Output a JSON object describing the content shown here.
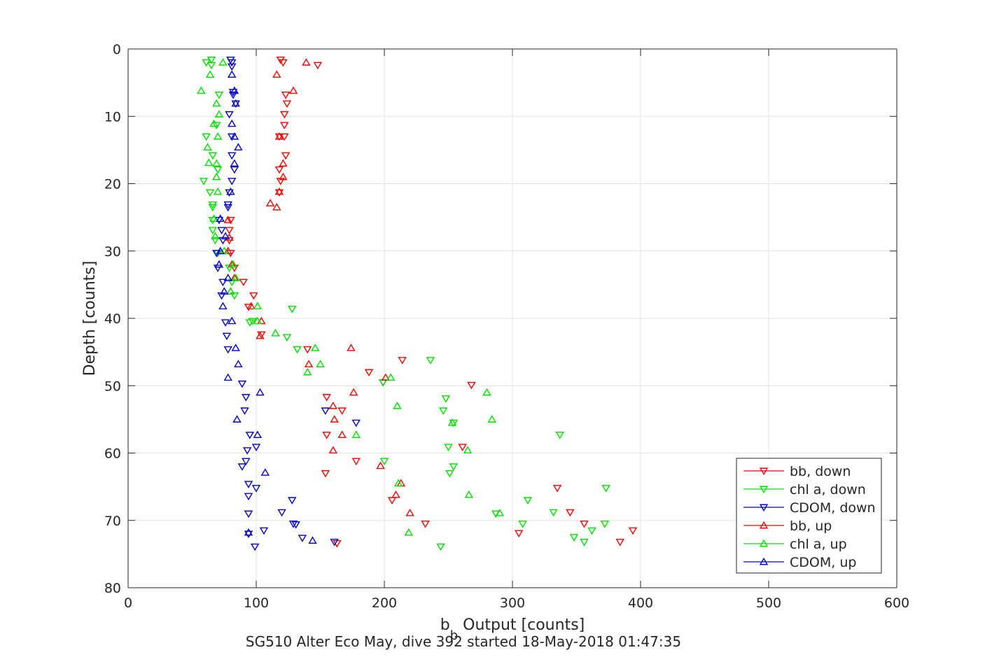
{
  "chart_data": {
    "type": "scatter",
    "title": "SG510 Alter Eco May, dive 392 started 18-May-2018 01:47:35",
    "xlabel_main": "b",
    "xlabel_sub": "b",
    "xlabel_rest": " Output [counts]",
    "ylabel": "Depth [counts]",
    "xlim": [
      0,
      600
    ],
    "ylim": [
      0,
      80
    ],
    "y_reversed": true,
    "xticks": [
      0,
      100,
      200,
      300,
      400,
      500,
      600
    ],
    "yticks": [
      0,
      10,
      20,
      30,
      40,
      50,
      60,
      70,
      80
    ],
    "grid": true,
    "legend_position": "bottom-right",
    "series": [
      {
        "name": "bb, down",
        "color": "#ff0000",
        "marker": "triangle-down",
        "points": [
          [
            119,
            1.6
          ],
          [
            121,
            2.0
          ],
          [
            148,
            2.4
          ],
          [
            123,
            6.8
          ],
          [
            124,
            8.1
          ],
          [
            122,
            9.7
          ],
          [
            122,
            11.3
          ],
          [
            122,
            13.0
          ],
          [
            118,
            13.0
          ],
          [
            123,
            15.8
          ],
          [
            118,
            17.9
          ],
          [
            119,
            19.6
          ],
          [
            118,
            21.3
          ],
          [
            80,
            25.4
          ],
          [
            79,
            26.9
          ],
          [
            79,
            28.4
          ],
          [
            80,
            30.3
          ],
          [
            83,
            32.5
          ],
          [
            90,
            34.6
          ],
          [
            98,
            36.6
          ],
          [
            94,
            38.3
          ],
          [
            104,
            42.4
          ],
          [
            140,
            44.6
          ],
          [
            214,
            46.2
          ],
          [
            188,
            48.0
          ],
          [
            199,
            49.5
          ],
          [
            268,
            49.9
          ],
          [
            155,
            51.7
          ],
          [
            167,
            53.7
          ],
          [
            155,
            57.3
          ],
          [
            261,
            59.1
          ],
          [
            178,
            61.2
          ],
          [
            154,
            63.0
          ],
          [
            335,
            65.2
          ],
          [
            206,
            67.0
          ],
          [
            345,
            68.8
          ],
          [
            232,
            70.5
          ],
          [
            356,
            70.5
          ],
          [
            305,
            71.9
          ],
          [
            394,
            71.5
          ],
          [
            384,
            73.2
          ],
          [
            163,
            73.4
          ]
        ]
      },
      {
        "name": "chl a, down",
        "color": "#00e000",
        "marker": "triangle-down",
        "points": [
          [
            65,
            1.6
          ],
          [
            61,
            2.0
          ],
          [
            65,
            2.4
          ],
          [
            71,
            6.8
          ],
          [
            69,
            11.3
          ],
          [
            61,
            13.0
          ],
          [
            66,
            15.8
          ],
          [
            70,
            17.9
          ],
          [
            59,
            19.6
          ],
          [
            64,
            21.3
          ],
          [
            66,
            23.1
          ],
          [
            66,
            23.5
          ],
          [
            66,
            25.4
          ],
          [
            66,
            26.9
          ],
          [
            68,
            28.4
          ],
          [
            70,
            30.3
          ],
          [
            79,
            32.5
          ],
          [
            81,
            34.6
          ],
          [
            83,
            36.6
          ],
          [
            128,
            38.6
          ],
          [
            95,
            40.6
          ],
          [
            97,
            40.4
          ],
          [
            124,
            42.8
          ],
          [
            132,
            44.6
          ],
          [
            236,
            46.2
          ],
          [
            199,
            49.5
          ],
          [
            248,
            51.9
          ],
          [
            246,
            53.7
          ],
          [
            254,
            55.5
          ],
          [
            337,
            57.3
          ],
          [
            250,
            59.1
          ],
          [
            200,
            61.2
          ],
          [
            251,
            63.0
          ],
          [
            373,
            65.2
          ],
          [
            312,
            67.0
          ],
          [
            332,
            68.8
          ],
          [
            308,
            70.5
          ],
          [
            372,
            70.5
          ],
          [
            348,
            72.5
          ],
          [
            356,
            73.2
          ],
          [
            244,
            73.9
          ],
          [
            287,
            69.0
          ],
          [
            362,
            71.5
          ],
          [
            254,
            62.0
          ]
        ]
      },
      {
        "name": "CDOM, down",
        "color": "#0000cc",
        "marker": "triangle-down",
        "points": [
          [
            80,
            1.6
          ],
          [
            81,
            2.0
          ],
          [
            82,
            6.8
          ],
          [
            79,
            9.7
          ],
          [
            81,
            13.0
          ],
          [
            81,
            15.8
          ],
          [
            83,
            17.9
          ],
          [
            81,
            19.6
          ],
          [
            79,
            21.3
          ],
          [
            78,
            23.1
          ],
          [
            78,
            23.5
          ],
          [
            71,
            25.4
          ],
          [
            73,
            26.9
          ],
          [
            74,
            28.4
          ],
          [
            69,
            30.3
          ],
          [
            70,
            32.5
          ],
          [
            74,
            34.6
          ],
          [
            73,
            36.6
          ],
          [
            76,
            40.6
          ],
          [
            77,
            42.6
          ],
          [
            78,
            44.6
          ],
          [
            89,
            49.7
          ],
          [
            92,
            51.7
          ],
          [
            91,
            53.7
          ],
          [
            154,
            53.7
          ],
          [
            178,
            55.5
          ],
          [
            95,
            57.3
          ],
          [
            100,
            59.1
          ],
          [
            93,
            59.6
          ],
          [
            92,
            61.2
          ],
          [
            89,
            62.0
          ],
          [
            94,
            64.6
          ],
          [
            100,
            65.2
          ],
          [
            94,
            66.4
          ],
          [
            128,
            67.0
          ],
          [
            120,
            68.8
          ],
          [
            94,
            69.0
          ],
          [
            129,
            70.5
          ],
          [
            106,
            71.5
          ],
          [
            94,
            72.0
          ],
          [
            99,
            73.9
          ],
          [
            161,
            73.2
          ],
          [
            131,
            70.6
          ],
          [
            136,
            72.6
          ],
          [
            81,
            2.6
          ],
          [
            82,
            6.4
          ],
          [
            84,
            8.1
          ]
        ]
      },
      {
        "name": "bb, up",
        "color": "#ff0000",
        "marker": "triangle-up",
        "points": [
          [
            139,
            2.0
          ],
          [
            116,
            3.8
          ],
          [
            129,
            6.2
          ],
          [
            118,
            13.0
          ],
          [
            121,
            17.0
          ],
          [
            121,
            19.0
          ],
          [
            118,
            21.2
          ],
          [
            111,
            22.9
          ],
          [
            116,
            23.5
          ],
          [
            78,
            25.4
          ],
          [
            79,
            28.0
          ],
          [
            78,
            30.0
          ],
          [
            81,
            32.0
          ],
          [
            83,
            34.0
          ],
          [
            80,
            36.0
          ],
          [
            96,
            38.2
          ],
          [
            104,
            40.4
          ],
          [
            103,
            42.6
          ],
          [
            141,
            46.8
          ],
          [
            174,
            44.4
          ],
          [
            201,
            48.8
          ],
          [
            176,
            51.0
          ],
          [
            160,
            53.0
          ],
          [
            167,
            57.3
          ],
          [
            161,
            55.0
          ],
          [
            160,
            59.6
          ],
          [
            197,
            61.9
          ],
          [
            213,
            64.5
          ],
          [
            209,
            66.2
          ],
          [
            220,
            68.9
          ]
        ]
      },
      {
        "name": "chl a, up",
        "color": "#00e000",
        "marker": "triangle-up",
        "points": [
          [
            74,
            2.0
          ],
          [
            64,
            3.8
          ],
          [
            57,
            6.2
          ],
          [
            69,
            8.1
          ],
          [
            71,
            9.7
          ],
          [
            67,
            11.1
          ],
          [
            70,
            13.0
          ],
          [
            62,
            14.6
          ],
          [
            69,
            17.0
          ],
          [
            63,
            16.9
          ],
          [
            69,
            19.0
          ],
          [
            70,
            21.2
          ],
          [
            67,
            25.2
          ],
          [
            68,
            27.8
          ],
          [
            75,
            30.0
          ],
          [
            82,
            32.0
          ],
          [
            84,
            34.0
          ],
          [
            80,
            36.0
          ],
          [
            101,
            38.2
          ],
          [
            101,
            40.4
          ],
          [
            115,
            42.2
          ],
          [
            146,
            44.4
          ],
          [
            150,
            46.8
          ],
          [
            140,
            48.0
          ],
          [
            205,
            48.8
          ],
          [
            280,
            51.0
          ],
          [
            210,
            53.0
          ],
          [
            284,
            55.0
          ],
          [
            178,
            57.3
          ],
          [
            265,
            59.6
          ],
          [
            211,
            64.5
          ],
          [
            266,
            66.2
          ],
          [
            290,
            68.9
          ],
          [
            219,
            71.8
          ],
          [
            253,
            55.5
          ]
        ]
      },
      {
        "name": "CDOM, up",
        "color": "#0000cc",
        "marker": "triangle-up",
        "points": [
          [
            81,
            3.8
          ],
          [
            83,
            6.2
          ],
          [
            84,
            8.1
          ],
          [
            81,
            11.1
          ],
          [
            83,
            13.0
          ],
          [
            86,
            14.6
          ],
          [
            83,
            17.0
          ],
          [
            80,
            21.2
          ],
          [
            72,
            25.2
          ],
          [
            76,
            27.8
          ],
          [
            72,
            30.0
          ],
          [
            71,
            32.0
          ],
          [
            78,
            34.0
          ],
          [
            75,
            36.0
          ],
          [
            74,
            38.2
          ],
          [
            81,
            40.4
          ],
          [
            84,
            44.4
          ],
          [
            86,
            46.8
          ],
          [
            78,
            48.8
          ],
          [
            103,
            51.0
          ],
          [
            85,
            55.0
          ],
          [
            101,
            57.3
          ],
          [
            107,
            62.9
          ],
          [
            94,
            71.8
          ],
          [
            144,
            73.0
          ]
        ]
      }
    ]
  }
}
